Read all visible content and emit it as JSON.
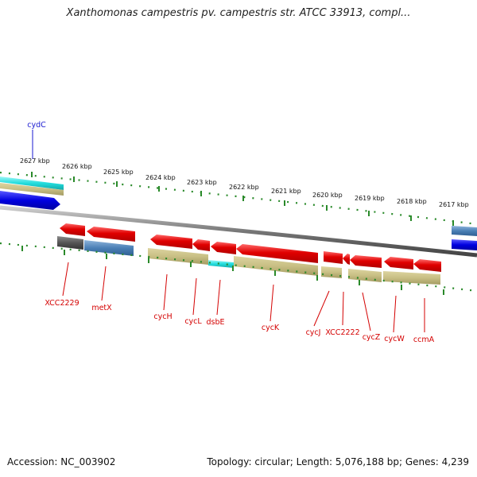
{
  "header": {
    "title": "Xanthomonas campestris pv. campestris str. ATCC 33913, compl..."
  },
  "footer": {
    "accession": "Accession: NC_003902",
    "summary": "Topology: circular; Length: 5,076,188 bp; Genes: 4,239"
  },
  "ticks": [
    "2627 kbp",
    "2626 kbp",
    "2625 kbp",
    "2624 kbp",
    "2623 kbp",
    "2622 kbp",
    "2621 kbp",
    "2620 kbp",
    "2619 kbp",
    "2618 kbp",
    "2617 kbp"
  ],
  "genes": [
    "cydC",
    "XCC2229",
    "metX",
    "cycH",
    "cycL",
    "dsbE",
    "cycK",
    "cycJ",
    "XCC2222",
    "cycZ",
    "cycW",
    "ccmA"
  ],
  "colors": {
    "cds_red": "#e00000",
    "cyan": "#22dddd",
    "tan": "#c8bf84",
    "steel_blue": "#4a7fb5",
    "dark_gray": "#555555",
    "blue": "#0000e0",
    "tick_green": "#2a8a2a",
    "label_red": "#d40000",
    "label_blue": "#1a1ad0"
  }
}
